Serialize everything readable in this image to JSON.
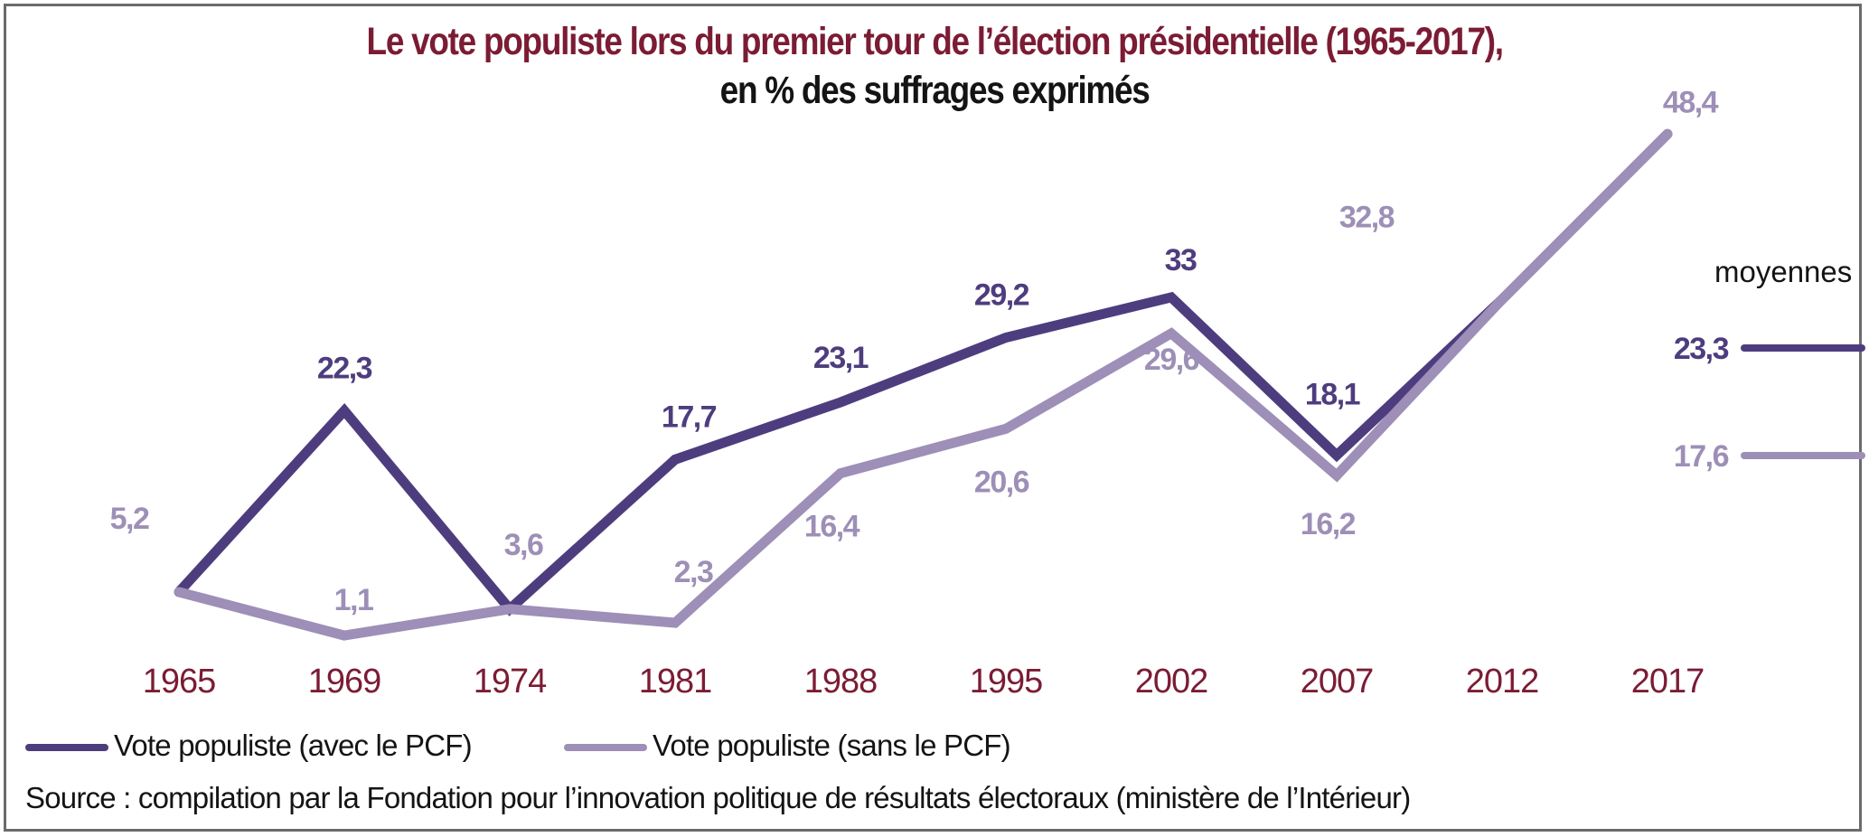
{
  "chart_data": {
    "type": "line",
    "title": "Le vote populiste lors du premier tour de l’élection présidentielle (1965-2017),",
    "subtitle": "en % des suffrages exprimés",
    "xlabel": "",
    "ylabel": "",
    "categories": [
      "1965",
      "1969",
      "1974",
      "1981",
      "1988",
      "1995",
      "2002",
      "2007",
      "2012",
      "2017"
    ],
    "series": [
      {
        "name": "Vote populiste (avec le PCF)",
        "color": "#4e3d7e",
        "values": [
          5.2,
          22.3,
          3.6,
          17.7,
          23.1,
          29.2,
          33,
          18.1,
          32.8,
          48.4
        ],
        "labels": [
          "",
          "22,3",
          "",
          "17,7",
          "23,1",
          "29,2",
          "33",
          "18,1",
          "",
          ""
        ]
      },
      {
        "name": "Vote populiste (sans le PCF)",
        "color": "#9d8fb7",
        "values": [
          5.2,
          1.1,
          3.6,
          2.3,
          16.4,
          20.6,
          29.6,
          16.2,
          32.8,
          48.4
        ],
        "labels": [
          "5,2",
          "1,1",
          "3,6",
          "2,3",
          "16,4",
          "20,6",
          "29,6",
          "16,2",
          "32,8",
          "48,4"
        ]
      }
    ],
    "averages": {
      "label": "moyennes",
      "items": [
        {
          "series": "Vote populiste (avec le PCF)",
          "value": 23.3,
          "label": "23,3",
          "color": "#4e3d7e"
        },
        {
          "series": "Vote populiste (sans le PCF)",
          "value": 17.6,
          "label": "17,6",
          "color": "#9d8fb7"
        }
      ]
    },
    "ylim": [
      0,
      50
    ],
    "grid": false,
    "legend": "bottom-left",
    "tick_color": "#7b1c34",
    "title_color": "#7b1c34"
  },
  "source": "Source : compilation par la Fondation pour l’innovation politique de résultats électoraux (ministère de l’Intérieur)"
}
